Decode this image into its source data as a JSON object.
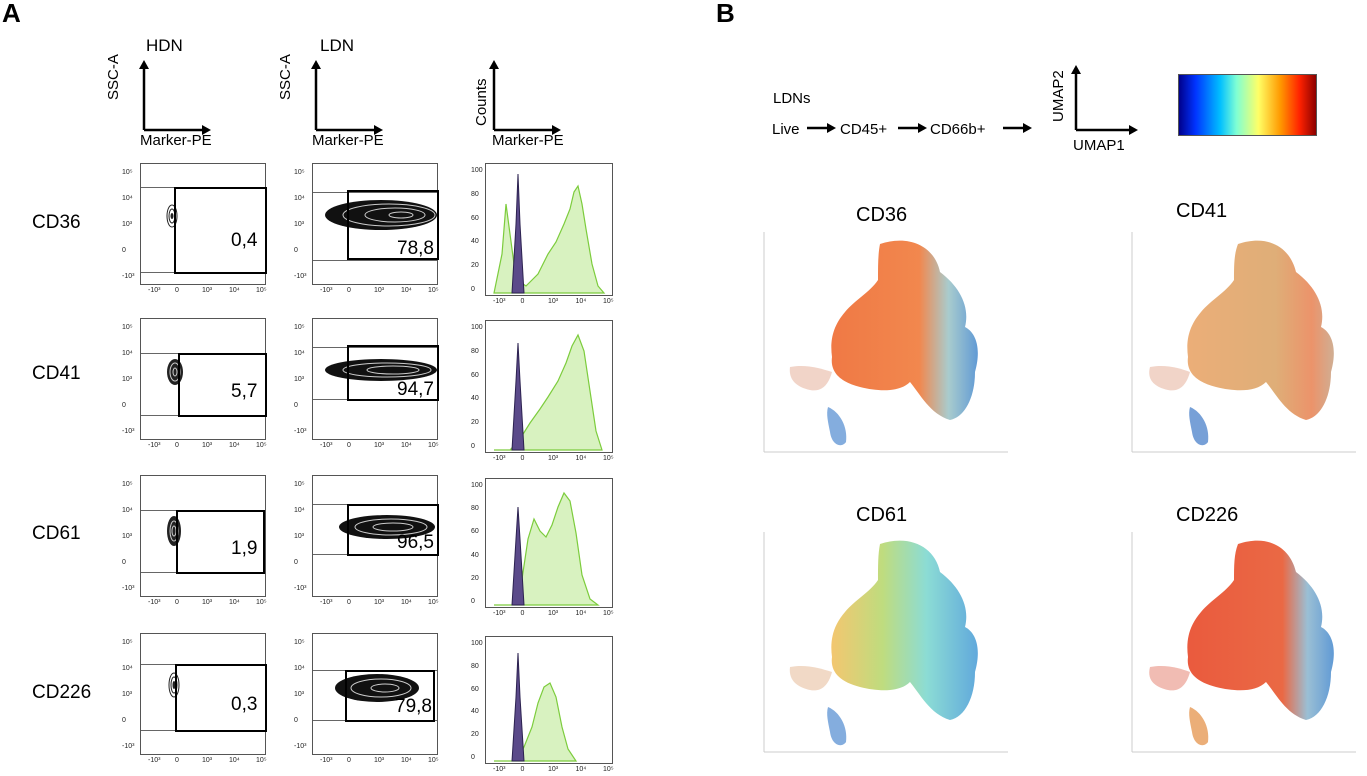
{
  "panels": {
    "a": "A",
    "b": "B"
  },
  "column_headers": {
    "hdn": "HDN",
    "ldn": "LDN"
  },
  "axes": {
    "ssc": "SSC-A",
    "marker": "Marker-PE",
    "counts": "Counts"
  },
  "rows": [
    {
      "marker": "CD36",
      "hdn_pct": "0,4",
      "ldn_pct": "78,8"
    },
    {
      "marker": "CD41",
      "hdn_pct": "5,7",
      "ldn_pct": "94,7"
    },
    {
      "marker": "CD61",
      "hdn_pct": "1,9",
      "ldn_pct": "96,5"
    },
    {
      "marker": "CD226",
      "hdn_pct": "0,3",
      "ldn_pct": "79,8"
    }
  ],
  "tick_labels": {
    "x": [
      "-10³",
      "0",
      "10³",
      "10⁴",
      "10⁵"
    ],
    "y": [
      "10⁵",
      "10⁴",
      "10³",
      "0",
      "-10³"
    ],
    "hist_y": [
      "100",
      "80",
      "60",
      "40",
      "20",
      "0"
    ]
  },
  "gating": {
    "title": "LDNs",
    "steps": [
      "Live",
      "CD45+",
      "CD66b+"
    ]
  },
  "umap_axes": {
    "x": "UMAP1",
    "y": "UMAP2"
  },
  "umap_titles": [
    "CD36",
    "CD41",
    "CD61",
    "CD226"
  ],
  "colors": {
    "histogram_fill": "#d8f2c0",
    "histogram_line": "#7ccc3c",
    "isotype": "#5b4a8a"
  }
}
